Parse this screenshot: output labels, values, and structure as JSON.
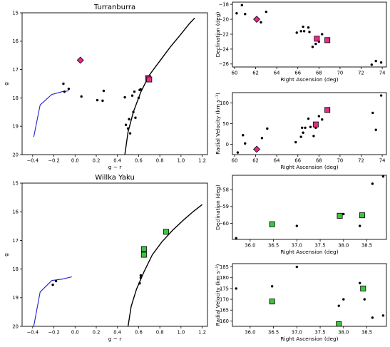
{
  "chart_data": [
    {
      "id": "turranburra-cmd",
      "type": "scatter",
      "title": "Turranburra",
      "xlabel": "g − r",
      "ylabel": "g",
      "xlim": [
        -0.5,
        1.25
      ],
      "ylim": [
        20,
        15
      ],
      "xticks": [
        -0.4,
        -0.2,
        0.0,
        0.2,
        0.4,
        0.6,
        0.8,
        1.0,
        1.2
      ],
      "xtick_labels": [
        "−0.4",
        "−0.2",
        "0.0",
        "0.2",
        "0.4",
        "0.6",
        "0.8",
        "1.0",
        "1.2"
      ],
      "yticks": [
        15,
        16,
        17,
        18,
        19,
        20
      ],
      "ytick_labels": [
        "15",
        "16",
        "17",
        "18",
        "19",
        "20"
      ],
      "series": [
        {
          "kind": "scatter",
          "marker": "circle",
          "color": "#000000",
          "x": [
            -0.11,
            -0.06,
            0.06,
            -0.1,
            0.21,
            0.26,
            0.27,
            0.47,
            0.48,
            0.5,
            0.51,
            0.52,
            0.54,
            0.55,
            0.56,
            0.57,
            0.6,
            0.61,
            0.62
          ],
          "y": [
            17.5,
            17.68,
            17.95,
            17.78,
            18.08,
            18.1,
            17.75,
            17.98,
            18.95,
            19.08,
            18.75,
            19.25,
            17.92,
            18.5,
            17.78,
            18.7,
            18.0,
            17.72,
            17.7
          ]
        },
        {
          "kind": "scatter",
          "marker": "square",
          "color": "#e62b8a",
          "edgecolor": "#000000",
          "x": [
            0.69,
            0.7
          ],
          "y": [
            17.3,
            17.35
          ]
        },
        {
          "kind": "scatter",
          "marker": "diamond",
          "color": "#e62b8a",
          "edgecolor": "#000000",
          "x": [
            0.05
          ],
          "y": [
            16.67
          ]
        },
        {
          "kind": "line",
          "color": "#1f1fcc",
          "x": [
            -0.39,
            -0.33,
            -0.22,
            -0.12,
            -0.06
          ],
          "y": [
            19.38,
            18.25,
            17.88,
            17.78,
            17.75
          ]
        },
        {
          "kind": "line",
          "color": "#000000",
          "x": [
            0.47,
            0.5,
            0.55,
            0.62,
            0.7,
            0.8,
            0.9,
            1.0,
            1.08,
            1.13
          ],
          "y": [
            20.0,
            19.2,
            18.5,
            17.8,
            17.2,
            16.7,
            16.2,
            15.75,
            15.38,
            15.18
          ]
        }
      ]
    },
    {
      "id": "turranburra-radec",
      "type": "scatter",
      "title": "",
      "xlabel": "Right Ascension (deg)",
      "ylabel": "Declination (deg)",
      "xlim": [
        59.8,
        74.4
      ],
      "ylim": [
        -26.4,
        -17.7
      ],
      "xticks": [
        60,
        62,
        64,
        66,
        68,
        70,
        72,
        74
      ],
      "xtick_labels": [
        "60",
        "62",
        "64",
        "66",
        "68",
        "70",
        "72",
        "74"
      ],
      "yticks": [
        -18,
        -20,
        -22,
        -24,
        -26
      ],
      "ytick_labels": [
        "−18",
        "−20",
        "−22",
        "−24",
        "−26"
      ],
      "series": [
        {
          "kind": "scatter",
          "marker": "circle",
          "color": "#000000",
          "x": [
            60.2,
            60.7,
            61.0,
            62.5,
            63.0,
            65.9,
            66.3,
            66.5,
            66.6,
            67.0,
            67.1,
            67.4,
            67.7,
            68.0,
            68.3,
            73.0,
            73.4,
            73.9
          ],
          "y": [
            -19.2,
            -18.1,
            -19.3,
            -20.4,
            -19.0,
            -21.8,
            -21.6,
            -21.0,
            -21.6,
            -21.1,
            -21.7,
            -23.7,
            -23.3,
            -23.0,
            -22.0,
            -26.1,
            -25.6,
            -25.8
          ]
        },
        {
          "kind": "scatter",
          "marker": "square",
          "color": "#e62b8a",
          "edgecolor": "#000000",
          "x": [
            67.8,
            68.8
          ],
          "y": [
            -22.6,
            -22.8
          ]
        },
        {
          "kind": "scatter",
          "marker": "diamond",
          "color": "#e62b8a",
          "edgecolor": "#000000",
          "x": [
            62.1
          ],
          "y": [
            -20.0
          ]
        }
      ]
    },
    {
      "id": "turranburra-rv",
      "type": "scatter",
      "title": "",
      "xlabel": "Right Ascension (deg)",
      "ylabel": "Radial Velocity (km s⁻¹)",
      "xlim": [
        59.8,
        74.4
      ],
      "ylim": [
        -25,
        125
      ],
      "xticks": [
        60,
        62,
        64,
        66,
        68,
        70,
        72,
        74
      ],
      "xtick_labels": [
        "60",
        "62",
        "64",
        "66",
        "68",
        "70",
        "72",
        "74"
      ],
      "yticks": [
        0,
        50,
        100
      ],
      "ytick_labels": [
        "0",
        "50",
        "100"
      ],
      "series": [
        {
          "kind": "scatter",
          "marker": "circle",
          "color": "#000000",
          "x": [
            60.3,
            60.8,
            61.0,
            62.6,
            63.1,
            65.8,
            66.3,
            66.4,
            66.5,
            66.7,
            67.0,
            67.2,
            67.5,
            67.7,
            68.0,
            68.3,
            73.1,
            73.4,
            73.9
          ],
          "y": [
            -20,
            22,
            2,
            15,
            38,
            5,
            18,
            40,
            28,
            40,
            62,
            42,
            20,
            40,
            68,
            60,
            76,
            35,
            118
          ]
        },
        {
          "kind": "scatter",
          "marker": "square",
          "color": "#e62b8a",
          "edgecolor": "#000000",
          "x": [
            67.7,
            68.8
          ],
          "y": [
            48,
            83
          ]
        },
        {
          "kind": "scatter",
          "marker": "diamond",
          "color": "#e62b8a",
          "edgecolor": "#000000",
          "x": [
            62.1
          ],
          "y": [
            -12
          ]
        }
      ]
    },
    {
      "id": "willka-yaku-cmd",
      "type": "scatter",
      "title": "Willka Yaku",
      "xlabel": "g − r",
      "ylabel": "g",
      "xlim": [
        -0.5,
        1.25
      ],
      "ylim": [
        20,
        15
      ],
      "xticks": [
        -0.4,
        -0.2,
        0.0,
        0.2,
        0.4,
        0.6,
        0.8,
        1.0,
        1.2
      ],
      "xtick_labels": [
        "−0.4",
        "−0.2",
        "0.0",
        "0.2",
        "0.4",
        "0.6",
        "0.8",
        "1.0",
        "1.2"
      ],
      "yticks": [
        15,
        16,
        17,
        18,
        19,
        20
      ],
      "ytick_labels": [
        "15",
        "16",
        "17",
        "18",
        "19",
        "20"
      ],
      "series": [
        {
          "kind": "scatter",
          "marker": "circle",
          "color": "#000000",
          "x": [
            -0.21,
            -0.18,
            0.61,
            0.62,
            0.62
          ],
          "y": [
            18.55,
            18.42,
            18.5,
            18.3,
            18.22
          ]
        },
        {
          "kind": "scatter",
          "marker": "square",
          "color": "#3ec43e",
          "edgecolor": "#000000",
          "x": [
            0.65,
            0.65,
            0.86
          ],
          "y": [
            17.3,
            17.5,
            16.7
          ]
        },
        {
          "kind": "line",
          "color": "#1f1fcc",
          "x": [
            -0.39,
            -0.33,
            -0.22,
            -0.12,
            -0.03
          ],
          "y": [
            20.0,
            18.8,
            18.4,
            18.35,
            18.27
          ]
        },
        {
          "kind": "line",
          "color": "#000000",
          "x": [
            0.5,
            0.53,
            0.58,
            0.65,
            0.73,
            0.82,
            0.92,
            1.02,
            1.12,
            1.2
          ],
          "y": [
            20.0,
            19.3,
            18.7,
            18.1,
            17.5,
            17.05,
            16.65,
            16.3,
            15.98,
            15.75
          ]
        }
      ]
    },
    {
      "id": "willka-yaku-radec",
      "type": "scatter",
      "title": "",
      "xlabel": "Right Ascension (deg)",
      "ylabel": "Declination (deg)",
      "xlim": [
        35.62,
        38.92
      ],
      "ylim": [
        -60.95,
        -57.15
      ],
      "xticks": [
        36.0,
        36.5,
        37.0,
        37.5,
        38.0,
        38.5
      ],
      "xtick_labels": [
        "36.0",
        "36.5",
        "37.0",
        "37.5",
        "38.0",
        "38.5"
      ],
      "yticks": [
        -58,
        -59,
        -60
      ],
      "ytick_labels": [
        "−58",
        "−59",
        "−60"
      ],
      "series": [
        {
          "kind": "scatter",
          "marker": "circle",
          "color": "#000000",
          "x": [
            35.7,
            37.0,
            38.0,
            38.35,
            38.62,
            38.85
          ],
          "y": [
            -60.88,
            -60.15,
            -59.45,
            -60.15,
            -57.65,
            -57.22
          ]
        },
        {
          "kind": "scatter",
          "marker": "square",
          "color": "#3ec43e",
          "edgecolor": "#000000",
          "x": [
            36.47,
            37.92,
            38.4
          ],
          "y": [
            -60.05,
            -59.55,
            -59.52
          ]
        }
      ]
    },
    {
      "id": "willka-yaku-rv",
      "type": "scatter",
      "title": "",
      "xlabel": "Right Ascension (deg)",
      "ylabel": "Radial Velocity (km s⁻¹)",
      "xlim": [
        35.62,
        38.92
      ],
      "ylim": [
        157.5,
        186.5
      ],
      "xticks": [
        36.0,
        36.5,
        37.0,
        37.5,
        38.0,
        38.5
      ],
      "xtick_labels": [
        "36.0",
        "36.5",
        "37.0",
        "37.5",
        "38.0",
        "38.5"
      ],
      "yticks": [
        160,
        165,
        170,
        175,
        180,
        185
      ],
      "ytick_labels": [
        "160",
        "165",
        "170",
        "175",
        "180",
        "185"
      ],
      "series": [
        {
          "kind": "scatter",
          "marker": "circle",
          "color": "#000000",
          "x": [
            35.7,
            36.47,
            37.0,
            37.9,
            38.0,
            38.35,
            38.45,
            38.62,
            38.85
          ],
          "y": [
            175,
            176,
            185,
            167,
            170,
            177.5,
            170,
            161.5,
            162.5
          ]
        },
        {
          "kind": "scatter",
          "marker": "square",
          "color": "#3ec43e",
          "edgecolor": "#000000",
          "x": [
            36.47,
            37.9,
            38.42
          ],
          "y": [
            169,
            158.5,
            175
          ]
        }
      ]
    }
  ]
}
